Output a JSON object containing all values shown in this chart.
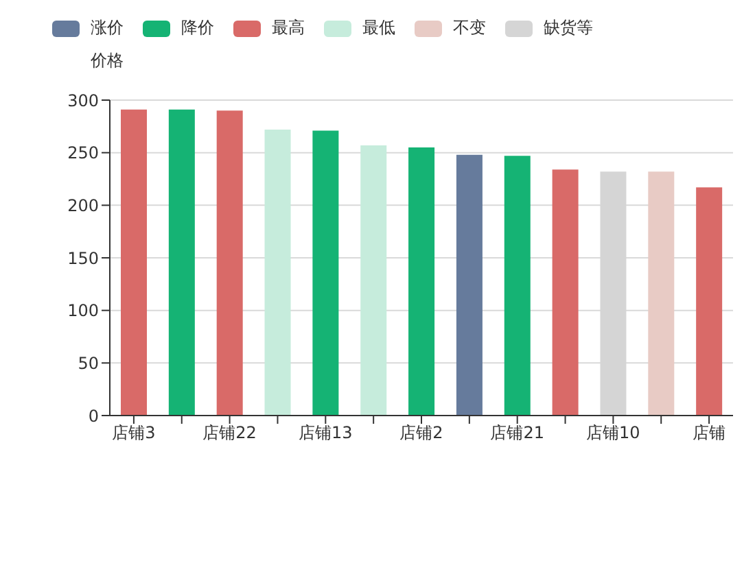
{
  "chart_data": {
    "type": "bar",
    "ylabel": "价格",
    "categories": [
      "店铺3",
      null,
      "店铺22",
      null,
      "店铺13",
      null,
      "店铺2",
      null,
      "店铺21",
      null,
      "店铺10",
      null,
      "店铺"
    ],
    "series": [
      {
        "name": "涨价",
        "color": "#667b9c",
        "values": [
          null,
          null,
          null,
          null,
          null,
          null,
          null,
          248,
          null,
          null,
          null,
          null,
          null
        ]
      },
      {
        "name": "降价",
        "color": "#15b374",
        "values": [
          null,
          291,
          null,
          null,
          271,
          null,
          255,
          null,
          247,
          null,
          null,
          null,
          null
        ]
      },
      {
        "name": "最高",
        "color": "#d96a68",
        "values": [
          291,
          null,
          290,
          null,
          null,
          null,
          null,
          null,
          null,
          234,
          null,
          null,
          217
        ]
      },
      {
        "name": "最低",
        "color": "#c6ecdc",
        "values": [
          null,
          null,
          null,
          272,
          null,
          257,
          null,
          null,
          null,
          null,
          null,
          null,
          null
        ]
      },
      {
        "name": "不变",
        "color": "#e8cbc5",
        "values": [
          null,
          null,
          null,
          null,
          null,
          null,
          null,
          null,
          null,
          null,
          null,
          232,
          null
        ]
      },
      {
        "name": "缺货等",
        "color": "#d5d5d5",
        "values": [
          null,
          null,
          null,
          null,
          null,
          null,
          null,
          null,
          null,
          null,
          232,
          null,
          null
        ]
      }
    ],
    "stacked": true,
    "ylim": [
      0,
      300
    ],
    "yticks": [
      0,
      50,
      100,
      150,
      200,
      250,
      300
    ],
    "grid": "y",
    "legend": "top left"
  }
}
